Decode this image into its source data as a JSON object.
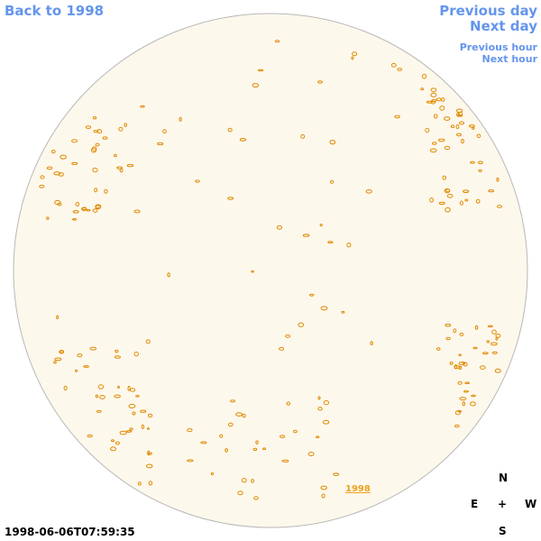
{
  "header": {
    "back_link": "Back to 1998",
    "previous_day": "Previous day",
    "next_day": "Next day",
    "previous_hour": "Previous hour",
    "next_hour": "Next hour"
  },
  "disk": {
    "year_label": "1998"
  },
  "timestamp": "1998-06-06T07:59:35",
  "compass": {
    "north": "N",
    "east": "E",
    "center": "+",
    "west": "W",
    "south": "S"
  }
}
